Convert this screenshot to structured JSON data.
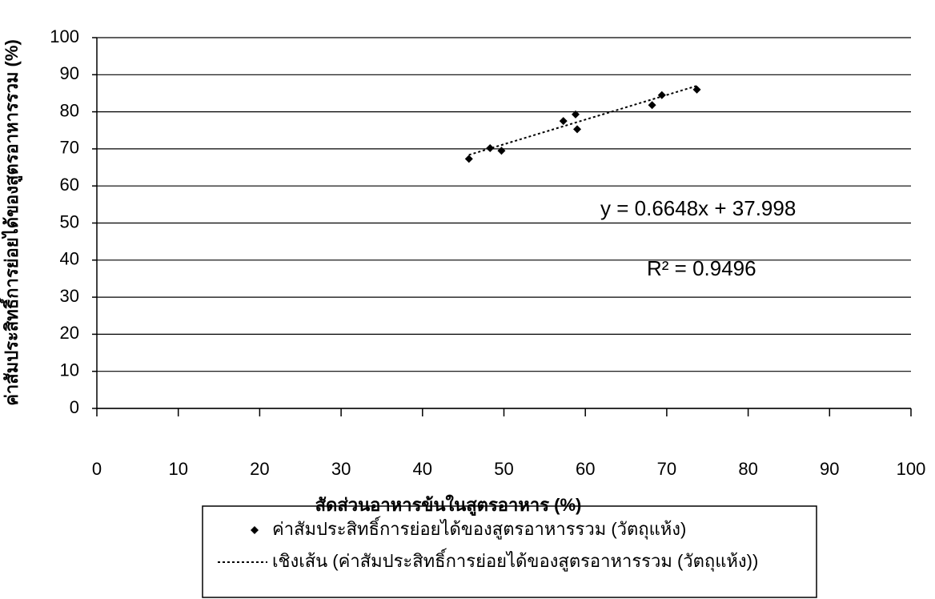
{
  "chart_data": {
    "type": "scatter",
    "x_label": "สัดส่วนอาหารข้นในสูตรอาหาร (%)",
    "y_label": "ค่าสัมประสิทธิ์การย่อยได้ของสูตรอาหารรวม (%)",
    "series": [
      {
        "name": "ค่าสัมประสิทธิ์การย่อยได้ของสูตรอาหารรวม (วัตถุแห้ง)",
        "color": "#000000",
        "x": [
          45.7,
          48.3,
          49.7,
          57.3,
          58.8,
          59.0,
          68.2,
          69.4,
          73.7
        ],
        "values": [
          67.3,
          70.2,
          69.5,
          77.5,
          79.3,
          75.3,
          81.8,
          84.5,
          86.0
        ]
      }
    ],
    "trendline": {
      "name": "เชิงเส้น (ค่าสัมประสิทธิ์การย่อยได้ของสูตรอาหารรวม (วัตถุแห้ง))",
      "slope": 0.6648,
      "intercept": 37.998,
      "equation": "y = 0.6648x + 37.998",
      "r_squared_label": "R² = 0.9496"
    },
    "xlim": [
      0,
      100
    ],
    "xticks": [
      0,
      10,
      20,
      30,
      40,
      50,
      60,
      70,
      80,
      90,
      100
    ],
    "ylim": [
      0,
      100
    ],
    "yticks": [
      0,
      10,
      20,
      30,
      40,
      50,
      60,
      70,
      80,
      90,
      100
    ],
    "grid": true,
    "legend": "bottom"
  }
}
